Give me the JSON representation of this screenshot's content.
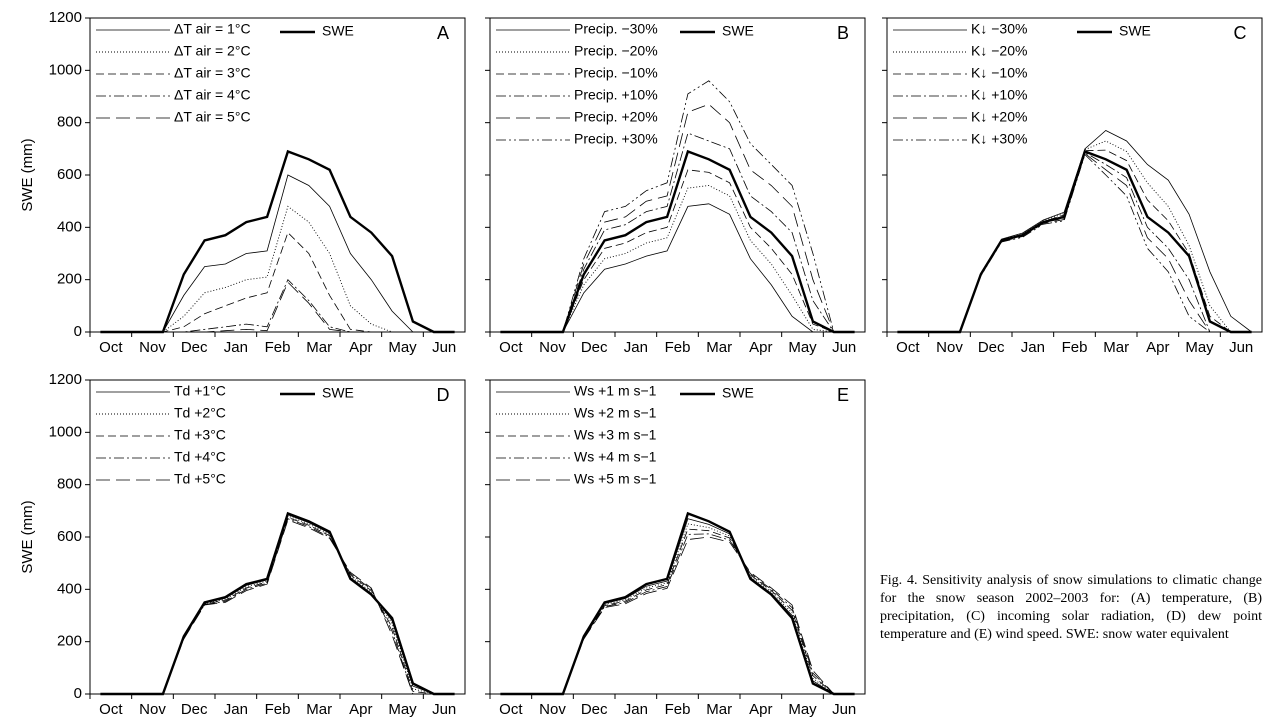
{
  "chart_data": [
    {
      "type": "line",
      "title": "A",
      "ylabel": "SWE (mm)",
      "ytick_labels": true,
      "categories": [
        "Oct",
        null,
        "Nov",
        null,
        "Dec",
        null,
        "Jan",
        null,
        "Feb",
        null,
        "Mar",
        null,
        "Apr",
        null,
        "May",
        null,
        "Jun",
        null
      ],
      "ylim": [
        0,
        1200
      ],
      "yticks": [
        0,
        200,
        400,
        600,
        800,
        1000,
        1200
      ],
      "series": [
        {
          "name": "ΔT air = 1°C",
          "color": "#000",
          "width": 0.8,
          "dash": "",
          "values": [
            0,
            0,
            0,
            0,
            140,
            250,
            260,
            300,
            310,
            600,
            560,
            480,
            300,
            200,
            80,
            0,
            0,
            0
          ]
        },
        {
          "name": "ΔT air = 2°C",
          "color": "#000",
          "width": 0.9,
          "dash": "1,2",
          "values": [
            0,
            0,
            0,
            0,
            60,
            150,
            170,
            200,
            210,
            480,
            420,
            300,
            100,
            30,
            0,
            0,
            0,
            0
          ]
        },
        {
          "name": "ΔT air = 3°C",
          "color": "#000",
          "width": 0.8,
          "dash": "8,4",
          "values": [
            0,
            0,
            0,
            0,
            20,
            70,
            100,
            130,
            150,
            380,
            300,
            140,
            10,
            0,
            0,
            0,
            0,
            0
          ]
        },
        {
          "name": "ΔT air = 4°C",
          "color": "#000",
          "width": 0.8,
          "dash": "10,3,2,3",
          "values": [
            0,
            0,
            0,
            0,
            0,
            10,
            20,
            30,
            20,
            200,
            120,
            20,
            0,
            0,
            0,
            0,
            0,
            0
          ]
        },
        {
          "name": "ΔT air = 5°C",
          "color": "#000",
          "width": 0.8,
          "dash": "14,6",
          "values": [
            0,
            0,
            0,
            0,
            0,
            0,
            5,
            10,
            5,
            190,
            110,
            10,
            0,
            0,
            0,
            0,
            0,
            0
          ]
        },
        {
          "name": "SWE",
          "color": "#000",
          "width": 2.4,
          "dash": "",
          "values": [
            0,
            0,
            0,
            0,
            220,
            350,
            370,
            420,
            440,
            690,
            660,
            620,
            440,
            380,
            290,
            40,
            0,
            0
          ]
        }
      ]
    },
    {
      "type": "line",
      "title": "B",
      "ytick_labels": false,
      "categories": [
        "Oct",
        null,
        "Nov",
        null,
        "Dec",
        null,
        "Jan",
        null,
        "Feb",
        null,
        "Mar",
        null,
        "Apr",
        null,
        "May",
        null,
        "Jun",
        null
      ],
      "ylim": [
        0,
        1200
      ],
      "yticks": [
        0,
        200,
        400,
        600,
        800,
        1000,
        1200
      ],
      "series": [
        {
          "name": "Precip. −30%",
          "color": "#000",
          "width": 0.8,
          "dash": "",
          "values": [
            0,
            0,
            0,
            0,
            150,
            240,
            260,
            290,
            310,
            480,
            490,
            450,
            280,
            180,
            60,
            0,
            0,
            0
          ]
        },
        {
          "name": "Precip. −20%",
          "color": "#000",
          "width": 0.9,
          "dash": "1,2",
          "values": [
            0,
            0,
            0,
            0,
            180,
            280,
            300,
            340,
            360,
            550,
            560,
            520,
            350,
            260,
            140,
            10,
            0,
            0
          ]
        },
        {
          "name": "Precip. −10%",
          "color": "#000",
          "width": 0.8,
          "dash": "8,4",
          "values": [
            0,
            0,
            0,
            0,
            200,
            320,
            340,
            380,
            400,
            620,
            610,
            570,
            400,
            320,
            220,
            30,
            0,
            0
          ]
        },
        {
          "name": "Precip. +10%",
          "color": "#000",
          "width": 0.8,
          "dash": "10,3,2,3",
          "values": [
            0,
            0,
            0,
            0,
            240,
            390,
            410,
            460,
            480,
            760,
            730,
            700,
            520,
            460,
            380,
            120,
            0,
            0
          ]
        },
        {
          "name": "Precip. +20%",
          "color": "#000",
          "width": 0.8,
          "dash": "14,6",
          "values": [
            0,
            0,
            0,
            0,
            260,
            420,
            440,
            500,
            520,
            840,
            870,
            800,
            620,
            560,
            480,
            200,
            0,
            0
          ]
        },
        {
          "name": "Precip. +30%",
          "color": "#000",
          "width": 0.8,
          "dash": "10,3,2,3,2,3",
          "values": [
            0,
            0,
            0,
            0,
            280,
            460,
            480,
            540,
            570,
            910,
            960,
            880,
            720,
            640,
            560,
            300,
            0,
            0
          ]
        },
        {
          "name": "SWE",
          "color": "#000",
          "width": 2.4,
          "dash": "",
          "values": [
            0,
            0,
            0,
            0,
            220,
            350,
            370,
            420,
            440,
            690,
            660,
            620,
            440,
            380,
            290,
            40,
            0,
            0
          ]
        }
      ]
    },
    {
      "type": "line",
      "title": "C",
      "ytick_labels": false,
      "categories": [
        "Oct",
        null,
        "Nov",
        null,
        "Dec",
        null,
        "Jan",
        null,
        "Feb",
        null,
        "Mar",
        null,
        "Apr",
        null,
        "May",
        null,
        "Jun",
        null
      ],
      "ylim": [
        0,
        1200
      ],
      "yticks": [
        0,
        200,
        400,
        600,
        800,
        1000,
        1200
      ],
      "series": [
        {
          "name": "K↓ −30%",
          "color": "#000",
          "width": 0.8,
          "dash": "",
          "values": [
            0,
            0,
            0,
            0,
            225,
            355,
            378,
            428,
            458,
            700,
            770,
            730,
            640,
            580,
            450,
            230,
            60,
            0
          ]
        },
        {
          "name": "K↓ −20%",
          "color": "#000",
          "width": 0.9,
          "dash": "1,2",
          "values": [
            0,
            0,
            0,
            0,
            223,
            353,
            375,
            425,
            453,
            697,
            730,
            690,
            570,
            480,
            330,
            100,
            0,
            0
          ]
        },
        {
          "name": "K↓ −10%",
          "color": "#000",
          "width": 0.8,
          "dash": "8,4",
          "values": [
            0,
            0,
            0,
            0,
            221,
            351,
            372,
            422,
            447,
            693,
            695,
            655,
            505,
            425,
            300,
            60,
            0,
            0
          ]
        },
        {
          "name": "K↓ +10%",
          "color": "#000",
          "width": 0.8,
          "dash": "10,3,2,3",
          "values": [
            0,
            0,
            0,
            0,
            218,
            348,
            368,
            418,
            435,
            686,
            640,
            590,
            400,
            320,
            200,
            0,
            0,
            0
          ]
        },
        {
          "name": "K↓ +20%",
          "color": "#000",
          "width": 0.8,
          "dash": "14,6",
          "values": [
            0,
            0,
            0,
            0,
            216,
            346,
            365,
            415,
            430,
            682,
            620,
            560,
            360,
            280,
            120,
            0,
            0,
            0
          ]
        },
        {
          "name": "K↓ +30%",
          "color": "#000",
          "width": 0.8,
          "dash": "10,3,2,3,2,3",
          "values": [
            0,
            0,
            0,
            0,
            214,
            344,
            362,
            412,
            425,
            678,
            600,
            520,
            320,
            230,
            60,
            0,
            0,
            0
          ]
        },
        {
          "name": "SWE",
          "color": "#000",
          "width": 2.4,
          "dash": "",
          "values": [
            0,
            0,
            0,
            0,
            220,
            350,
            370,
            420,
            440,
            690,
            660,
            620,
            440,
            380,
            290,
            40,
            0,
            0
          ]
        }
      ]
    },
    {
      "type": "line",
      "title": "D",
      "ylabel": "SWE (mm)",
      "ytick_labels": true,
      "categories": [
        "Oct",
        null,
        "Nov",
        null,
        "Dec",
        null,
        "Jan",
        null,
        "Feb",
        null,
        "Mar",
        null,
        "Apr",
        null,
        "May",
        null,
        "Jun",
        null
      ],
      "ylim": [
        0,
        1200
      ],
      "yticks": [
        0,
        200,
        400,
        600,
        800,
        1000,
        1200
      ],
      "series": [
        {
          "name": "Td +1°C",
          "color": "#000",
          "width": 0.8,
          "dash": "",
          "values": [
            0,
            0,
            0,
            0,
            218,
            348,
            366,
            415,
            436,
            685,
            655,
            615,
            445,
            385,
            280,
            30,
            0,
            0
          ]
        },
        {
          "name": "Td +2°C",
          "color": "#000",
          "width": 0.9,
          "dash": "1,2",
          "values": [
            0,
            0,
            0,
            0,
            216,
            346,
            362,
            410,
            432,
            680,
            650,
            610,
            450,
            390,
            270,
            20,
            0,
            0
          ]
        },
        {
          "name": "Td +3°C",
          "color": "#000",
          "width": 0.8,
          "dash": "8,4",
          "values": [
            0,
            0,
            0,
            0,
            214,
            344,
            358,
            405,
            428,
            675,
            645,
            605,
            455,
            395,
            255,
            10,
            0,
            0
          ]
        },
        {
          "name": "Td +4°C",
          "color": "#000",
          "width": 0.8,
          "dash": "10,3,2,3",
          "values": [
            0,
            0,
            0,
            0,
            212,
            342,
            354,
            400,
            424,
            670,
            640,
            600,
            460,
            400,
            240,
            0,
            0,
            0
          ]
        },
        {
          "name": "Td +5°C",
          "color": "#000",
          "width": 0.8,
          "dash": "14,6",
          "values": [
            0,
            0,
            0,
            0,
            210,
            340,
            350,
            395,
            420,
            665,
            635,
            595,
            465,
            405,
            225,
            0,
            0,
            0
          ]
        },
        {
          "name": "SWE",
          "color": "#000",
          "width": 2.4,
          "dash": "",
          "values": [
            0,
            0,
            0,
            0,
            220,
            350,
            370,
            420,
            440,
            690,
            660,
            620,
            440,
            380,
            290,
            40,
            0,
            0
          ]
        }
      ]
    },
    {
      "type": "line",
      "title": "E",
      "ytick_labels": false,
      "categories": [
        "Oct",
        null,
        "Nov",
        null,
        "Dec",
        null,
        "Jan",
        null,
        "Feb",
        null,
        "Mar",
        null,
        "Apr",
        null,
        "May",
        null,
        "Jun",
        null
      ],
      "ylim": [
        0,
        1200
      ],
      "yticks": [
        0,
        200,
        400,
        600,
        800,
        1000,
        1200
      ],
      "series": [
        {
          "name": "Ws +1 m s−1",
          "color": "#000",
          "width": 0.8,
          "dash": "",
          "values": [
            0,
            0,
            0,
            0,
            218,
            346,
            365,
            412,
            432,
            670,
            648,
            612,
            445,
            385,
            300,
            50,
            0,
            0
          ]
        },
        {
          "name": "Ws +2 m s−1",
          "color": "#000",
          "width": 0.9,
          "dash": "1,2",
          "values": [
            0,
            0,
            0,
            0,
            216,
            342,
            360,
            405,
            425,
            650,
            636,
            604,
            450,
            390,
            310,
            60,
            0,
            0
          ]
        },
        {
          "name": "Ws +3 m s−1",
          "color": "#000",
          "width": 0.8,
          "dash": "8,4",
          "values": [
            0,
            0,
            0,
            0,
            214,
            338,
            355,
            398,
            418,
            630,
            624,
            596,
            455,
            395,
            320,
            70,
            0,
            0
          ]
        },
        {
          "name": "Ws +4 m s−1",
          "color": "#000",
          "width": 0.8,
          "dash": "10,3,2,3",
          "values": [
            0,
            0,
            0,
            0,
            212,
            334,
            350,
            391,
            411,
            610,
            612,
            588,
            460,
            400,
            330,
            80,
            0,
            0
          ]
        },
        {
          "name": "Ws +5 m s−1",
          "color": "#000",
          "width": 0.8,
          "dash": "14,6",
          "values": [
            0,
            0,
            0,
            0,
            210,
            330,
            345,
            384,
            404,
            590,
            600,
            580,
            465,
            405,
            340,
            90,
            0,
            0
          ]
        },
        {
          "name": "SWE",
          "color": "#000",
          "width": 2.4,
          "dash": "",
          "values": [
            0,
            0,
            0,
            0,
            220,
            350,
            370,
            420,
            440,
            690,
            660,
            620,
            440,
            380,
            290,
            40,
            0,
            0
          ]
        }
      ]
    }
  ],
  "caption": "Fig. 4. Sensitivity analysis of snow simulations to climatic change for the snow season 2002–2003 for: (A) temperature, (B) precipitation, (C) incoming solar radiation, (D) dew point temperature and (E) wind speed. SWE: snow water equivalent"
}
